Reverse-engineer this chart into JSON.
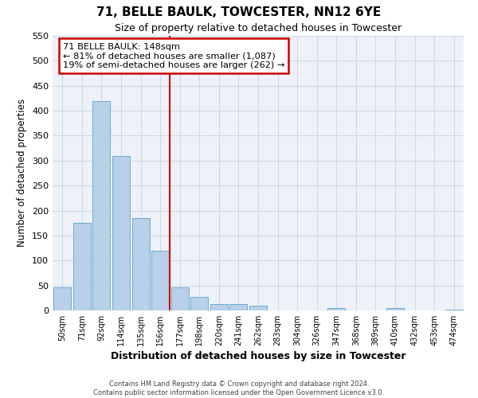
{
  "title": "71, BELLE BAULK, TOWCESTER, NN12 6YE",
  "subtitle": "Size of property relative to detached houses in Towcester",
  "xlabel": "Distribution of detached houses by size in Towcester",
  "ylabel": "Number of detached properties",
  "bar_labels": [
    "50sqm",
    "71sqm",
    "92sqm",
    "114sqm",
    "135sqm",
    "156sqm",
    "177sqm",
    "198sqm",
    "220sqm",
    "241sqm",
    "262sqm",
    "283sqm",
    "304sqm",
    "326sqm",
    "347sqm",
    "368sqm",
    "389sqm",
    "410sqm",
    "432sqm",
    "453sqm",
    "474sqm"
  ],
  "bar_values": [
    47,
    175,
    420,
    310,
    185,
    120,
    47,
    27,
    13,
    13,
    10,
    0,
    0,
    0,
    5,
    0,
    0,
    5,
    0,
    0,
    2
  ],
  "bar_color": "#b8d0e8",
  "bar_edge_color": "#6aaad4",
  "vline_x": 5.5,
  "vline_color": "#cc0000",
  "annotation_title": "71 BELLE BAULK: 148sqm",
  "annotation_line1": "← 81% of detached houses are smaller (1,087)",
  "annotation_line2": "19% of semi-detached houses are larger (262) →",
  "annotation_box_color": "#cc0000",
  "ylim": [
    0,
    550
  ],
  "yticks": [
    0,
    50,
    100,
    150,
    200,
    250,
    300,
    350,
    400,
    450,
    500,
    550
  ],
  "footer_line1": "Contains HM Land Registry data © Crown copyright and database right 2024.",
  "footer_line2": "Contains public sector information licensed under the Open Government Licence v3.0.",
  "grid_color": "#ccd9e8",
  "bg_color": "#eef2f8"
}
